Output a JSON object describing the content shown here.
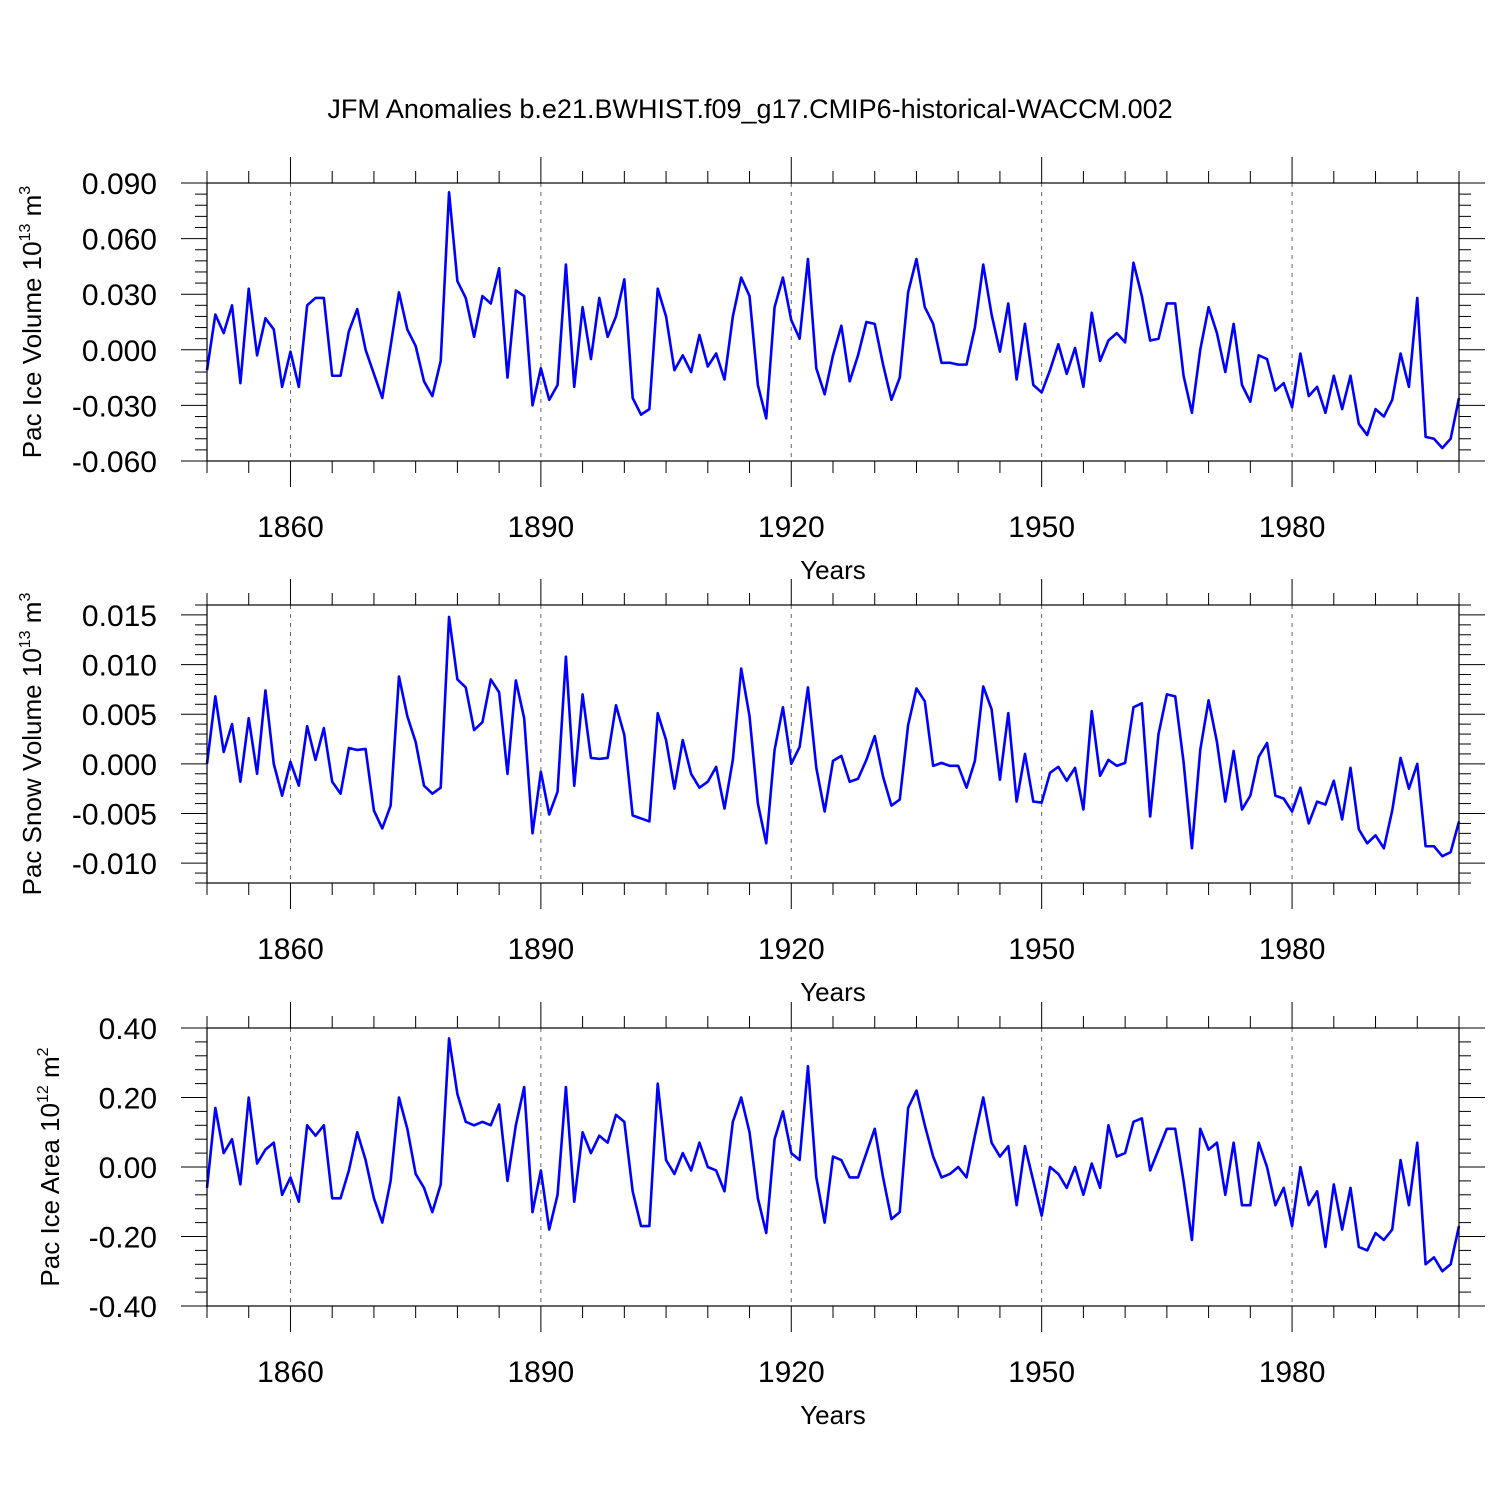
{
  "figure_title": "JFM Anomalies b.e21.BWHIST.f09_g17.CMIP6-historical-WACCM.002",
  "chart_data": [
    {
      "type": "line",
      "title": "JFM Anomalies b.e21.BWHIST.f09_g17.CMIP6-historical-WACCM.002",
      "xlabel": "Years",
      "ylabel": "Pac Ice Volume 10",
      "ylabel_exp": "13",
      "ylabel_unit": " m",
      "ylabel_unit_exp": "3",
      "xlim": [
        1850,
        2000
      ],
      "ylim": [
        -0.06,
        0.09
      ],
      "xticks": [
        1860,
        1890,
        1920,
        1950,
        1980
      ],
      "xtick_labels": [
        "1860",
        "1890",
        "1920",
        "1950",
        "1980"
      ],
      "yticks": [
        -0.06,
        -0.03,
        0.0,
        0.03,
        0.06,
        0.09
      ],
      "ytick_labels": [
        "-0.060",
        "-0.030",
        "0.000",
        "0.030",
        "0.060",
        "0.090"
      ],
      "line_color": "#0000ff",
      "series": [
        {
          "name": "Pac Ice Volume",
          "x_start": 1850,
          "values": [
            -0.011,
            0.019,
            0.009,
            0.024,
            -0.018,
            0.033,
            -0.003,
            0.017,
            0.011,
            -0.02,
            -0.001,
            -0.02,
            0.024,
            0.028,
            0.028,
            -0.014,
            -0.014,
            0.01,
            0.022,
            0.0,
            -0.013,
            -0.026,
            0.002,
            0.031,
            0.011,
            0.002,
            -0.017,
            -0.025,
            -0.006,
            0.085,
            0.037,
            0.028,
            0.007,
            0.029,
            0.025,
            0.044,
            -0.015,
            0.032,
            0.029,
            -0.03,
            -0.01,
            -0.027,
            -0.019,
            0.046,
            -0.02,
            0.023,
            -0.005,
            0.028,
            0.007,
            0.018,
            0.038,
            -0.026,
            -0.035,
            -0.032,
            0.033,
            0.018,
            -0.011,
            -0.003,
            -0.012,
            0.008,
            -0.009,
            -0.002,
            -0.016,
            0.018,
            0.039,
            0.029,
            -0.019,
            -0.037,
            0.023,
            0.039,
            0.016,
            0.006,
            0.049,
            -0.01,
            -0.024,
            -0.003,
            0.013,
            -0.017,
            -0.003,
            0.015,
            0.014,
            -0.008,
            -0.027,
            -0.015,
            0.031,
            0.049,
            0.023,
            0.014,
            -0.007,
            -0.007,
            -0.008,
            -0.008,
            0.012,
            0.046,
            0.019,
            -0.001,
            0.025,
            -0.016,
            0.014,
            -0.019,
            -0.023,
            -0.011,
            0.003,
            -0.013,
            0.001,
            -0.02,
            0.02,
            -0.006,
            0.005,
            0.009,
            0.004,
            0.047,
            0.029,
            0.005,
            0.006,
            0.025,
            0.025,
            -0.014,
            -0.034,
            0.0,
            0.023,
            0.009,
            -0.012,
            0.014,
            -0.019,
            -0.028,
            -0.003,
            -0.005,
            -0.022,
            -0.018,
            -0.031,
            -0.002,
            -0.025,
            -0.02,
            -0.034,
            -0.014,
            -0.032,
            -0.014,
            -0.04,
            -0.046,
            -0.032,
            -0.036,
            -0.027,
            -0.002,
            -0.02,
            0.028,
            -0.047,
            -0.048,
            -0.053,
            -0.048,
            -0.026
          ]
        }
      ]
    },
    {
      "type": "line",
      "title": "",
      "xlabel": "Years",
      "ylabel": "Pac Snow Volume 10",
      "ylabel_exp": "13",
      "ylabel_unit": " m",
      "ylabel_unit_exp": "3",
      "xlim": [
        1850,
        2000
      ],
      "ylim": [
        -0.012,
        0.016
      ],
      "xticks": [
        1860,
        1890,
        1920,
        1950,
        1980
      ],
      "xtick_labels": [
        "1860",
        "1890",
        "1920",
        "1950",
        "1980"
      ],
      "yticks": [
        -0.01,
        -0.005,
        0.0,
        0.005,
        0.01,
        0.015
      ],
      "ytick_labels": [
        "-0.010",
        "-0.005",
        "0.000",
        "0.005",
        "0.010",
        "0.015"
      ],
      "line_color": "#0000ff",
      "series": [
        {
          "name": "Pac Snow Volume",
          "x_start": 1850,
          "values": [
            0.0,
            0.0068,
            0.0012,
            0.004,
            -0.0018,
            0.0046,
            -0.001,
            0.0074,
            0.0,
            -0.0032,
            0.0002,
            -0.0022,
            0.0038,
            0.0004,
            0.0036,
            -0.0018,
            -0.003,
            0.0016,
            0.0014,
            0.0015,
            -0.0047,
            -0.0065,
            -0.0042,
            0.0088,
            0.0048,
            0.0022,
            -0.0022,
            -0.003,
            -0.0024,
            0.0148,
            0.0085,
            0.0077,
            0.0034,
            0.0042,
            0.0085,
            0.0072,
            -0.001,
            0.0084,
            0.0046,
            -0.007,
            -0.0008,
            -0.0051,
            -0.0028,
            0.0108,
            -0.0022,
            0.007,
            0.0006,
            0.0005,
            0.0006,
            0.0059,
            0.0029,
            -0.0052,
            -0.0055,
            -0.0058,
            0.0051,
            0.0024,
            -0.0025,
            0.0024,
            -0.001,
            -0.0024,
            -0.0018,
            -0.0003,
            -0.0045,
            0.0004,
            0.0096,
            0.0048,
            -0.004,
            -0.008,
            0.0014,
            0.0057,
            0.0,
            0.0017,
            0.0077,
            -0.0004,
            -0.0048,
            0.0003,
            0.0008,
            -0.0018,
            -0.0015,
            0.0004,
            0.0028,
            -0.0013,
            -0.0042,
            -0.0036,
            0.0039,
            0.0076,
            0.0063,
            -0.0002,
            0.0001,
            -0.0002,
            -0.0002,
            -0.0024,
            0.0003,
            0.0078,
            0.0055,
            -0.0016,
            0.0051,
            -0.0038,
            0.001,
            -0.0038,
            -0.0039,
            -0.0009,
            -0.0003,
            -0.0017,
            -0.0004,
            -0.0046,
            0.0053,
            -0.0012,
            0.0004,
            -0.0002,
            0.0001,
            0.0057,
            0.0061,
            -0.0053,
            0.003,
            0.007,
            0.0068,
            0.0002,
            -0.0085,
            0.0014,
            0.0064,
            0.0022,
            -0.0038,
            0.0013,
            -0.0046,
            -0.0032,
            0.0007,
            0.0021,
            -0.0032,
            -0.0035,
            -0.0048,
            -0.0024,
            -0.006,
            -0.0038,
            -0.0041,
            -0.0017,
            -0.0056,
            -0.0004,
            -0.0066,
            -0.008,
            -0.0072,
            -0.0085,
            -0.0047,
            0.0006,
            -0.0025,
            0.0,
            -0.0083,
            -0.0083,
            -0.0093,
            -0.0089,
            -0.0058
          ]
        }
      ]
    },
    {
      "type": "line",
      "title": "",
      "xlabel": "Years",
      "ylabel": "Pac Ice Area 10",
      "ylabel_exp": "12",
      "ylabel_unit": " m",
      "ylabel_unit_exp": "2",
      "xlim": [
        1850,
        2000
      ],
      "ylim": [
        -0.4,
        0.4
      ],
      "xticks": [
        1860,
        1890,
        1920,
        1950,
        1980
      ],
      "xtick_labels": [
        "1860",
        "1890",
        "1920",
        "1950",
        "1980"
      ],
      "yticks": [
        -0.4,
        -0.2,
        0.0,
        0.2,
        0.4
      ],
      "ytick_labels": [
        "-0.40",
        "-0.20",
        "0.00",
        "0.20",
        "0.40"
      ],
      "line_color": "#0000ff",
      "series": [
        {
          "name": "Pac Ice Area",
          "x_start": 1850,
          "values": [
            -0.06,
            0.17,
            0.04,
            0.08,
            -0.05,
            0.2,
            0.01,
            0.05,
            0.07,
            -0.08,
            -0.03,
            -0.1,
            0.12,
            0.09,
            0.12,
            -0.09,
            -0.09,
            -0.01,
            0.1,
            0.02,
            -0.09,
            -0.16,
            -0.04,
            0.2,
            0.11,
            -0.02,
            -0.06,
            -0.13,
            -0.05,
            0.37,
            0.21,
            0.13,
            0.12,
            0.13,
            0.12,
            0.18,
            -0.04,
            0.12,
            0.23,
            -0.13,
            -0.01,
            -0.18,
            -0.08,
            0.23,
            -0.1,
            0.1,
            0.04,
            0.09,
            0.07,
            0.15,
            0.13,
            -0.07,
            -0.17,
            -0.17,
            0.24,
            0.02,
            -0.02,
            0.04,
            -0.01,
            0.07,
            0.0,
            -0.01,
            -0.07,
            0.13,
            0.2,
            0.1,
            -0.09,
            -0.19,
            0.08,
            0.16,
            0.04,
            0.02,
            0.29,
            -0.03,
            -0.16,
            0.03,
            0.02,
            -0.03,
            -0.03,
            0.04,
            0.11,
            -0.03,
            -0.15,
            -0.13,
            0.17,
            0.22,
            0.12,
            0.03,
            -0.03,
            -0.02,
            0.0,
            -0.03,
            0.09,
            0.2,
            0.07,
            0.03,
            0.06,
            -0.11,
            0.06,
            -0.04,
            -0.14,
            0.0,
            -0.02,
            -0.06,
            0.0,
            -0.08,
            0.01,
            -0.06,
            0.12,
            0.03,
            0.04,
            0.13,
            0.14,
            -0.01,
            0.05,
            0.11,
            0.11,
            -0.04,
            -0.21,
            0.11,
            0.05,
            0.07,
            -0.08,
            0.07,
            -0.11,
            -0.11,
            0.07,
            0.0,
            -0.11,
            -0.06,
            -0.17,
            0.0,
            -0.11,
            -0.07,
            -0.23,
            -0.05,
            -0.18,
            -0.06,
            -0.23,
            -0.24,
            -0.19,
            -0.21,
            -0.18,
            0.02,
            -0.11,
            0.07,
            -0.28,
            -0.26,
            -0.3,
            -0.28,
            -0.17
          ]
        }
      ]
    }
  ]
}
